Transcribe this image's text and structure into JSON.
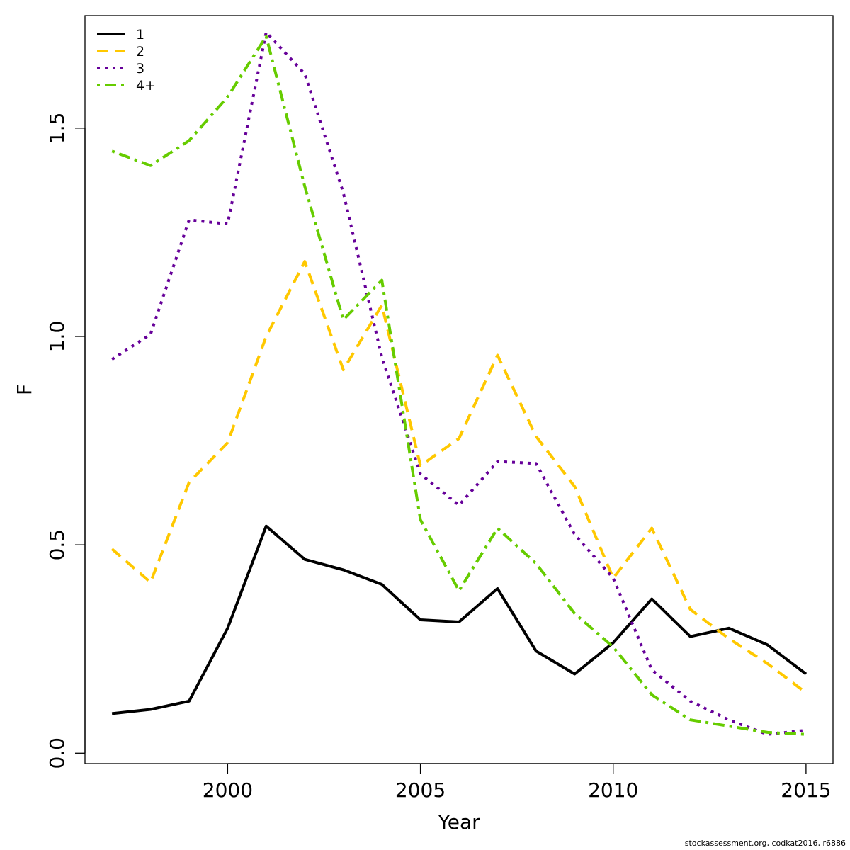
{
  "chart_data": {
    "type": "line",
    "xlabel": "Year",
    "ylabel": "F",
    "xlim": [
      1996.3,
      2015.7
    ],
    "ylim": [
      -0.025,
      1.77
    ],
    "x_ticks": [
      2000,
      2005,
      2010,
      2015
    ],
    "y_ticks": [
      0.0,
      0.5,
      1.0,
      1.5
    ],
    "x_tick_labels": [
      "2000",
      "2005",
      "2010",
      "2015"
    ],
    "y_tick_labels": [
      "0.0",
      "0.5",
      "1.0",
      "1.5"
    ],
    "grid": false,
    "legend_position": "top-left",
    "x": [
      1997,
      1998,
      1999,
      2000,
      2001,
      2002,
      2003,
      2004,
      2005,
      2006,
      2007,
      2008,
      2009,
      2010,
      2011,
      2012,
      2013,
      2014,
      2015
    ],
    "series": [
      {
        "name": "1",
        "color": "#000000",
        "dash": "solid",
        "values": [
          0.095,
          0.105,
          0.125,
          0.3,
          0.545,
          0.465,
          0.44,
          0.405,
          0.32,
          0.315,
          0.395,
          0.245,
          0.19,
          0.265,
          0.37,
          0.28,
          0.3,
          0.26,
          0.19
        ]
      },
      {
        "name": "2",
        "color": "#FFC800",
        "dash": "dashed",
        "values": [
          0.49,
          0.41,
          0.65,
          0.745,
          1.0,
          1.18,
          0.92,
          1.075,
          0.69,
          0.755,
          0.955,
          0.76,
          0.64,
          0.42,
          0.54,
          0.345,
          0.275,
          0.215,
          0.145
        ]
      },
      {
        "name": "3",
        "color": "#660099",
        "dash": "dotted",
        "values": [
          0.945,
          1.005,
          1.28,
          1.27,
          1.73,
          1.63,
          1.345,
          0.95,
          0.67,
          0.595,
          0.7,
          0.695,
          0.525,
          0.42,
          0.2,
          0.125,
          0.08,
          0.045,
          0.055
        ]
      },
      {
        "name": "4+",
        "color": "#66CC00",
        "dash": "dashdot",
        "values": [
          1.445,
          1.41,
          1.47,
          1.575,
          1.72,
          1.36,
          1.04,
          1.135,
          0.56,
          0.39,
          0.54,
          0.455,
          0.335,
          0.255,
          0.14,
          0.08,
          0.065,
          0.05,
          0.045
        ]
      }
    ]
  },
  "footer": "stockassessment.org, codkat2016, r6886"
}
